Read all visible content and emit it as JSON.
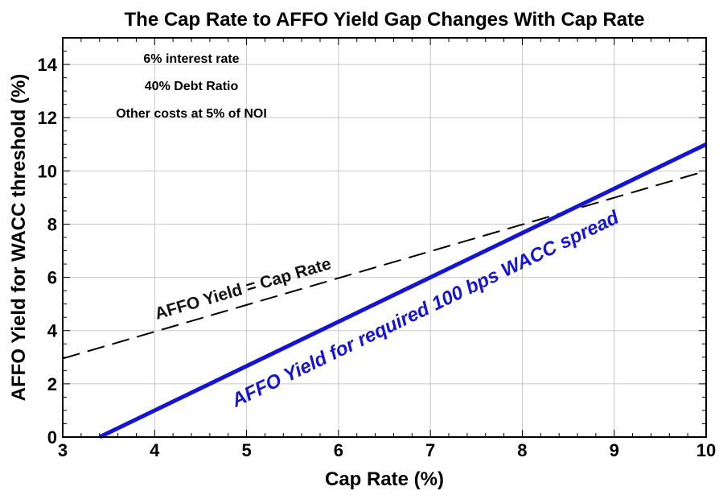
{
  "chart_data": {
    "type": "line",
    "title": "The Cap Rate to AFFO Yield Gap Changes With Cap Rate",
    "xlabel": "Cap Rate (%)",
    "ylabel": "AFFO Yield for WACC threshold (%)",
    "xlim": [
      3,
      10
    ],
    "ylim": [
      0,
      15
    ],
    "xticks": [
      3,
      4,
      5,
      6,
      7,
      8,
      9,
      10
    ],
    "yticks": [
      0,
      2,
      4,
      6,
      8,
      10,
      12,
      14
    ],
    "grid": true,
    "legend": "none",
    "notes": [
      "6% interest rate",
      "40% Debt Ratio",
      "Other costs at 5% of NOI"
    ],
    "series": [
      {
        "name": "AFFO Yield = Cap Rate",
        "style": "dashed",
        "color": "#000000",
        "x": [
          3,
          10
        ],
        "y": [
          2.95,
          10.0
        ]
      },
      {
        "name": "AFFO Yield for required 100 bps WACC spread",
        "style": "solid",
        "color": "#1414d2",
        "x": [
          3.4,
          10
        ],
        "y": [
          0.0,
          11.0
        ]
      }
    ]
  }
}
